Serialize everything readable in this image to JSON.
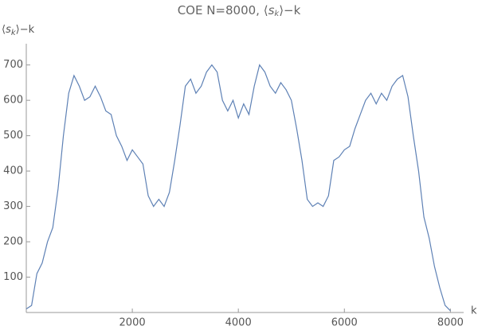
{
  "chart_data": {
    "type": "line",
    "title_parts": [
      "COE N=8000, ⟨",
      "s",
      "k",
      "⟩−k"
    ],
    "y_label_parts": [
      "⟨",
      "s",
      "k",
      "⟩−k"
    ],
    "x_label": "k",
    "x": [
      0,
      100,
      200,
      300,
      400,
      500,
      600,
      700,
      800,
      900,
      1000,
      1100,
      1200,
      1300,
      1400,
      1500,
      1600,
      1700,
      1800,
      1900,
      2000,
      2100,
      2200,
      2300,
      2400,
      2500,
      2600,
      2700,
      2800,
      2900,
      3000,
      3100,
      3200,
      3300,
      3400,
      3500,
      3600,
      3700,
      3800,
      3900,
      4000,
      4100,
      4200,
      4300,
      4400,
      4500,
      4600,
      4700,
      4800,
      4900,
      5000,
      5100,
      5200,
      5300,
      5400,
      5500,
      5600,
      5700,
      5800,
      5900,
      6000,
      6100,
      6200,
      6300,
      6400,
      6500,
      6600,
      6700,
      6800,
      6900,
      7000,
      7100,
      7200,
      7300,
      7400,
      7500,
      7600,
      7700,
      7800,
      7900,
      8000
    ],
    "series": [
      {
        "name": "s",
        "color": "#5e81b5",
        "values": [
          10,
          20,
          110,
          140,
          200,
          240,
          350,
          500,
          620,
          670,
          640,
          600,
          610,
          640,
          610,
          570,
          560,
          500,
          470,
          430,
          460,
          440,
          420,
          330,
          300,
          320,
          300,
          340,
          430,
          530,
          640,
          660,
          620,
          640,
          680,
          700,
          680,
          600,
          570,
          600,
          550,
          590,
          560,
          640,
          700,
          680,
          640,
          620,
          650,
          630,
          600,
          520,
          430,
          320,
          300,
          310,
          300,
          330,
          430,
          440,
          460,
          470,
          520,
          560,
          600,
          620,
          590,
          620,
          600,
          640,
          660,
          670,
          610,
          500,
          400,
          270,
          210,
          130,
          70,
          20,
          5
        ]
      }
    ],
    "xlim": [
      0,
      8250
    ],
    "ylim": [
      0,
      760
    ],
    "xticks": [
      2000,
      4000,
      6000,
      8000
    ],
    "yticks": [
      100,
      200,
      300,
      400,
      500,
      600,
      700
    ]
  }
}
